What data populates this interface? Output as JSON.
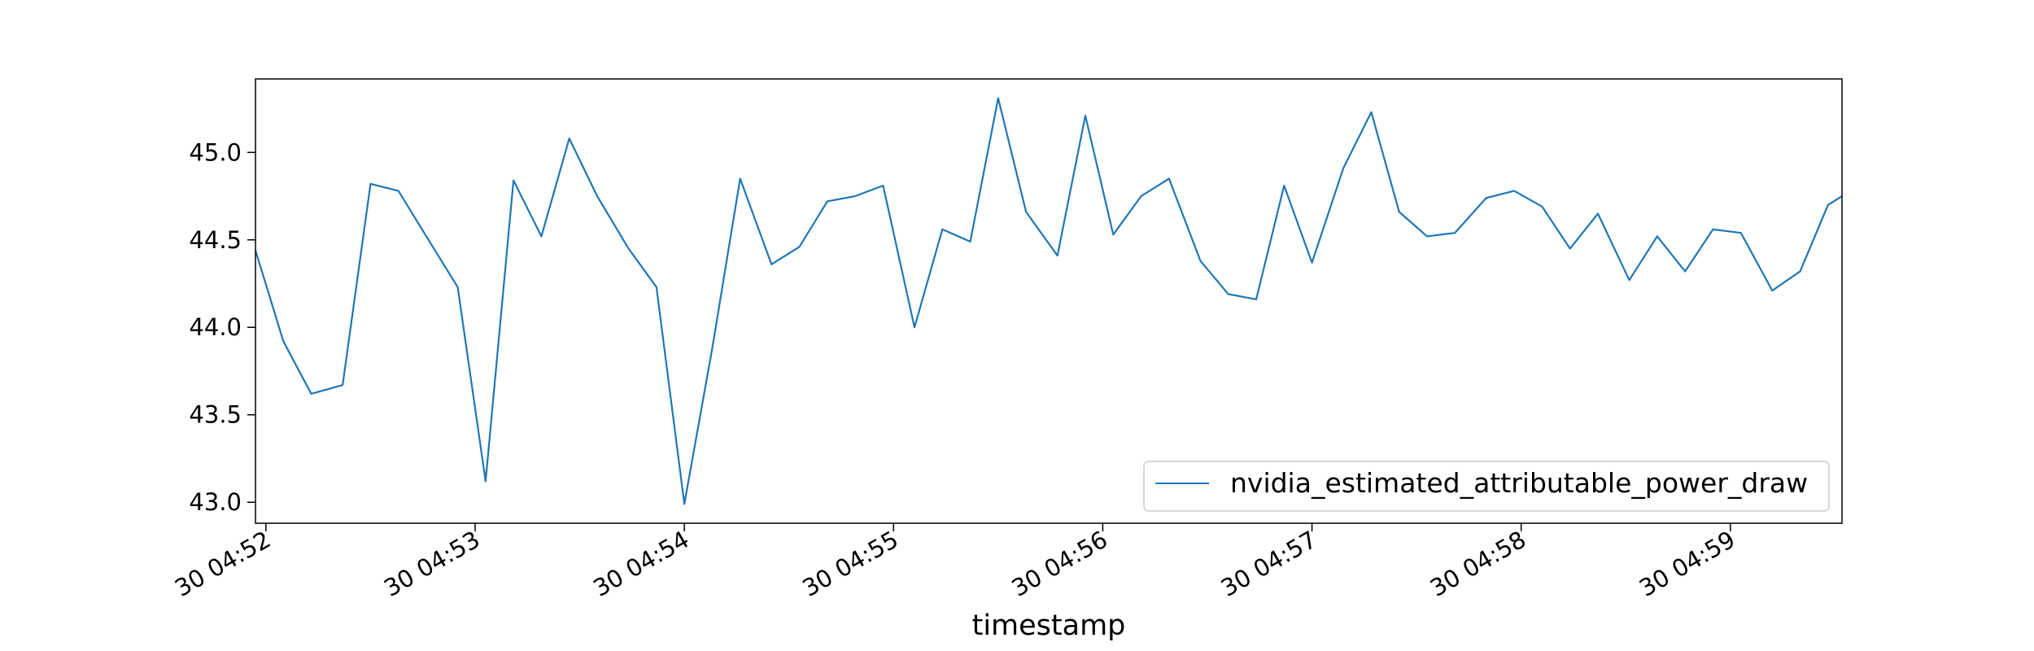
{
  "chart_data": {
    "type": "line",
    "title": "",
    "xlabel": "timestamp",
    "ylabel": "",
    "x_axis": "datetime",
    "x_ticks": [
      "30 04:52",
      "30 04:53",
      "30 04:54",
      "30 04:55",
      "30 04:56",
      "30 04:57",
      "30 04:58",
      "30 04:59"
    ],
    "xlim": [
      "04:51:57",
      "04:59:32"
    ],
    "y_ticks": [
      "43.0",
      "43.5",
      "44.0",
      "44.5",
      "45.0"
    ],
    "ylim": [
      42.88,
      45.42
    ],
    "grid": false,
    "legend": "lower-right",
    "colors": {
      "line": "#1f77b4"
    },
    "series": [
      {
        "name": "nvidia_estimated_attributable_power_draw",
        "x": [
          "04:51:57",
          "04:52:05",
          "04:52:13",
          "04:52:22",
          "04:52:30",
          "04:52:38",
          "04:52:46",
          "04:52:55",
          "04:53:03",
          "04:53:11",
          "04:53:19",
          "04:53:27",
          "04:53:35",
          "04:53:44",
          "04:53:52",
          "04:54:00",
          "04:54:08",
          "04:54:16",
          "04:54:25",
          "04:54:33",
          "04:54:41",
          "04:54:49",
          "04:54:57",
          "04:55:06",
          "04:55:14",
          "04:55:22",
          "04:55:30",
          "04:55:38",
          "04:55:47",
          "04:55:55",
          "04:56:03",
          "04:56:11",
          "04:56:19",
          "04:56:28",
          "04:56:36",
          "04:56:44",
          "04:56:52",
          "04:57:00",
          "04:57:09",
          "04:57:17",
          "04:57:25",
          "04:57:33",
          "04:57:41",
          "04:57:50",
          "04:57:58",
          "04:58:06",
          "04:58:14",
          "04:58:22",
          "04:58:31",
          "04:58:39",
          "04:58:47",
          "04:58:55",
          "04:59:03",
          "04:59:12",
          "04:59:20",
          "04:59:28",
          "04:59:32"
        ],
        "y": [
          44.44,
          43.92,
          43.62,
          43.67,
          44.82,
          44.78,
          44.52,
          44.23,
          43.12,
          44.84,
          44.52,
          45.08,
          44.75,
          44.45,
          44.23,
          42.99,
          43.88,
          44.85,
          44.36,
          44.46,
          44.72,
          44.75,
          44.81,
          44.0,
          44.56,
          44.49,
          45.31,
          44.66,
          44.41,
          45.21,
          44.53,
          44.75,
          44.85,
          44.38,
          44.19,
          44.16,
          44.81,
          44.37,
          44.91,
          45.23,
          44.66,
          44.52,
          44.54,
          44.74,
          44.78,
          44.69,
          44.45,
          44.65,
          44.27,
          44.52,
          44.32,
          44.56,
          44.54,
          44.21,
          44.32,
          44.7,
          44.75
        ]
      }
    ]
  }
}
